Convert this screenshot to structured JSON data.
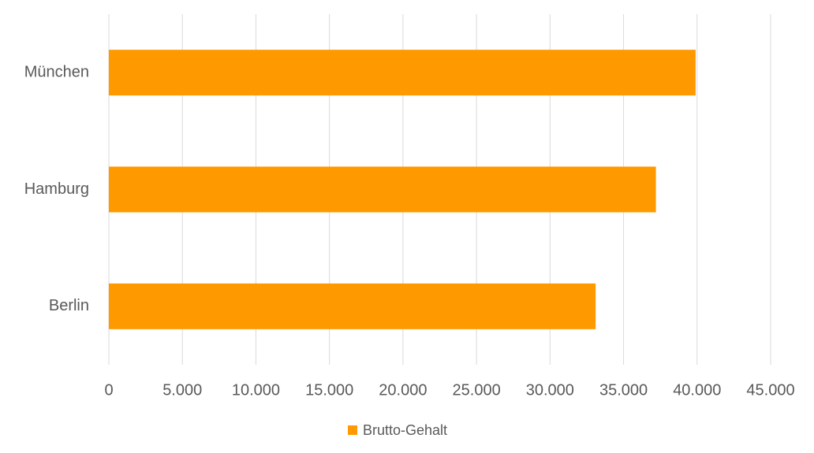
{
  "chart_data": {
    "type": "bar",
    "orientation": "horizontal",
    "categories": [
      "München",
      "Hamburg",
      "Berlin"
    ],
    "series": [
      {
        "name": "Brutto-Gehalt",
        "color": "#ff9900",
        "values": [
          39900,
          37200,
          33100
        ]
      }
    ],
    "xlim": [
      0,
      45000
    ],
    "xticks": [
      0,
      {
        "value": 5000,
        "label": "5.000"
      },
      {
        "value": 10000,
        "label": "10.000"
      },
      {
        "value": 15000,
        "label": "15.000"
      },
      {
        "value": 20000,
        "label": "20.000"
      },
      {
        "value": 25000,
        "label": "25.000"
      },
      {
        "value": 30000,
        "label": "30.000"
      },
      {
        "value": 35000,
        "label": "35.000"
      },
      {
        "value": 40000,
        "label": "40.000"
      },
      {
        "value": 45000,
        "label": "45.000"
      }
    ],
    "grid": true,
    "legend": "bottom"
  }
}
